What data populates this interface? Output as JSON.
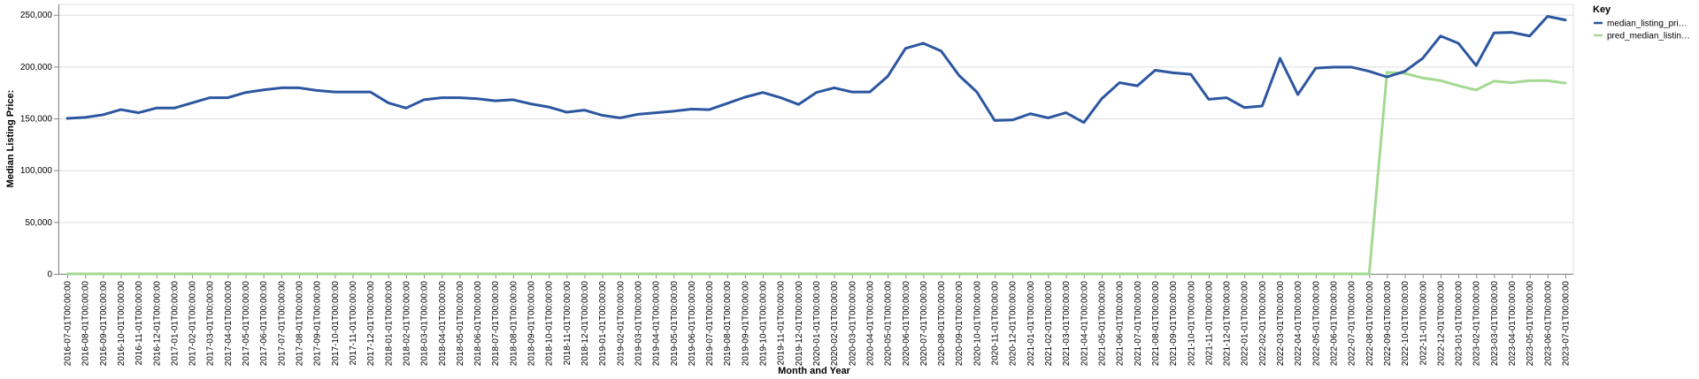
{
  "chart_data": {
    "type": "line",
    "xlabel": "Month and Year",
    "ylabel": "Median Listing Price:",
    "ylim": [
      0,
      260000
    ],
    "yticks": [
      "0",
      "50,000",
      "100,000",
      "150,000",
      "200,000",
      "250,000"
    ],
    "ytick_values": [
      0,
      50000,
      100000,
      150000,
      200000,
      250000
    ],
    "grid": true,
    "legend_title": "Key",
    "legend_position": "right",
    "categories": [
      "2016-07-01T00:00:00",
      "2016-08-01T00:00:00",
      "2016-09-01T00:00:00",
      "2016-10-01T00:00:00",
      "2016-11-01T00:00:00",
      "2016-12-01T00:00:00",
      "2017-01-01T00:00:00",
      "2017-02-01T00:00:00",
      "2017-03-01T00:00:00",
      "2017-04-01T00:00:00",
      "2017-05-01T00:00:00",
      "2017-06-01T00:00:00",
      "2017-07-01T00:00:00",
      "2017-08-01T00:00:00",
      "2017-09-01T00:00:00",
      "2017-10-01T00:00:00",
      "2017-11-01T00:00:00",
      "2017-12-01T00:00:00",
      "2018-01-01T00:00:00",
      "2018-02-01T00:00:00",
      "2018-03-01T00:00:00",
      "2018-04-01T00:00:00",
      "2018-05-01T00:00:00",
      "2018-06-01T00:00:00",
      "2018-07-01T00:00:00",
      "2018-08-01T00:00:00",
      "2018-09-01T00:00:00",
      "2018-10-01T00:00:00",
      "2018-11-01T00:00:00",
      "2018-12-01T00:00:00",
      "2019-01-01T00:00:00",
      "2019-02-01T00:00:00",
      "2019-03-01T00:00:00",
      "2019-04-01T00:00:00",
      "2019-05-01T00:00:00",
      "2019-06-01T00:00:00",
      "2019-07-01T00:00:00",
      "2019-08-01T00:00:00",
      "2019-09-01T00:00:00",
      "2019-10-01T00:00:00",
      "2019-11-01T00:00:00",
      "2019-12-01T00:00:00",
      "2020-01-01T00:00:00",
      "2020-02-01T00:00:00",
      "2020-03-01T00:00:00",
      "2020-04-01T00:00:00",
      "2020-05-01T00:00:00",
      "2020-06-01T00:00:00",
      "2020-07-01T00:00:00",
      "2020-08-01T00:00:00",
      "2020-09-01T00:00:00",
      "2020-10-01T00:00:00",
      "2020-11-01T00:00:00",
      "2020-12-01T00:00:00",
      "2021-01-01T00:00:00",
      "2021-02-01T00:00:00",
      "2021-03-01T00:00:00",
      "2021-04-01T00:00:00",
      "2021-05-01T00:00:00",
      "2021-06-01T00:00:00",
      "2021-07-01T00:00:00",
      "2021-08-01T00:00:00",
      "2021-09-01T00:00:00",
      "2021-10-01T00:00:00",
      "2021-11-01T00:00:00",
      "2021-12-01T00:00:00",
      "2022-01-01T00:00:00",
      "2022-02-01T00:00:00",
      "2022-03-01T00:00:00",
      "2022-04-01T00:00:00",
      "2022-05-01T00:00:00",
      "2022-06-01T00:00:00",
      "2022-07-01T00:00:00",
      "2022-08-01T00:00:00",
      "2022-09-01T00:00:00",
      "2022-10-01T00:00:00",
      "2022-11-01T00:00:00",
      "2022-12-01T00:00:00",
      "2023-01-01T00:00:00",
      "2023-02-01T00:00:00",
      "2023-03-01T00:00:00",
      "2023-04-01T00:00:00",
      "2023-05-01T00:00:00",
      "2023-06-01T00:00:00",
      "2023-07-01T00:00:00"
    ],
    "series": [
      {
        "name": "median_listing_pri…",
        "color": "#2c56a0",
        "values": [
          150000,
          151000,
          153500,
          158500,
          155500,
          160000,
          160000,
          165000,
          170000,
          170000,
          175000,
          177500,
          179500,
          179500,
          177000,
          175500,
          175500,
          175500,
          165000,
          160000,
          168000,
          170000,
          170000,
          169000,
          167000,
          168000,
          164000,
          161000,
          156000,
          158000,
          153000,
          150500,
          154000,
          155500,
          157000,
          159000,
          158500,
          164500,
          170500,
          175000,
          170000,
          163500,
          175000,
          179500,
          175500,
          175500,
          190500,
          217500,
          222500,
          215000,
          191500,
          175500,
          148000,
          148500,
          154500,
          150500,
          155500,
          146000,
          169000,
          184500,
          181500,
          196500,
          194000,
          192500,
          168500,
          170000,
          160500,
          162000,
          208000,
          173000,
          198500,
          199500,
          199500,
          195500,
          190000,
          195500,
          208000,
          229500,
          222500,
          201000,
          232500,
          233000,
          229500,
          248500,
          245000
        ]
      },
      {
        "name": "pred_median_listin…",
        "color": "#a3d993",
        "values": [
          0,
          0,
          0,
          0,
          0,
          0,
          0,
          0,
          0,
          0,
          0,
          0,
          0,
          0,
          0,
          0,
          0,
          0,
          0,
          0,
          0,
          0,
          0,
          0,
          0,
          0,
          0,
          0,
          0,
          0,
          0,
          0,
          0,
          0,
          0,
          0,
          0,
          0,
          0,
          0,
          0,
          0,
          0,
          0,
          0,
          0,
          0,
          0,
          0,
          0,
          0,
          0,
          0,
          0,
          0,
          0,
          0,
          0,
          0,
          0,
          0,
          0,
          0,
          0,
          0,
          0,
          0,
          0,
          0,
          0,
          0,
          0,
          0,
          0,
          194500,
          193500,
          189000,
          186500,
          181500,
          177500,
          186000,
          184500,
          186500,
          186500,
          184000
        ]
      }
    ]
  }
}
